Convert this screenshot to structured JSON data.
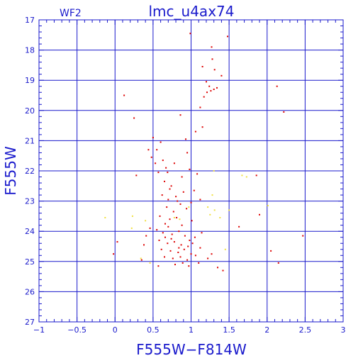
{
  "chart_data": {
    "type": "scatter",
    "title": "lmc_u4ax74",
    "panel_label": "WF2",
    "xlabel": "F555W−F814W",
    "ylabel": "F555W",
    "xlim": [
      -1,
      3
    ],
    "ylim": [
      27,
      17
    ],
    "y_inverted": true,
    "x_ticks": [
      "−1",
      "−0.5",
      "0",
      "0.5",
      "1",
      "1.5",
      "2",
      "2.5",
      "3"
    ],
    "x_tick_values": [
      -1,
      -0.5,
      0,
      0.5,
      1,
      1.5,
      2,
      2.5,
      3
    ],
    "y_ticks": [
      "17",
      "18",
      "19",
      "20",
      "21",
      "22",
      "23",
      "24",
      "25",
      "26",
      "27"
    ],
    "y_tick_values": [
      17,
      18,
      19,
      20,
      21,
      22,
      23,
      24,
      25,
      26,
      27
    ],
    "grid": true,
    "colors": {
      "axes": "#1a1acc",
      "grid": "#1a1acc",
      "series_main": "#dd0000",
      "series_secondary": "#f0e040"
    },
    "series": [
      {
        "color_key": "series_main",
        "points": [
          [
            0.99,
            17.45
          ],
          [
            1.48,
            17.55
          ],
          [
            1.27,
            17.9
          ],
          [
            1.15,
            18.55
          ],
          [
            1.28,
            18.3
          ],
          [
            1.31,
            18.65
          ],
          [
            1.4,
            18.85
          ],
          [
            1.2,
            19.05
          ],
          [
            1.24,
            19.2
          ],
          [
            1.26,
            19.35
          ],
          [
            1.3,
            19.3
          ],
          [
            1.21,
            19.4
          ],
          [
            1.17,
            19.55
          ],
          [
            1.34,
            19.25
          ],
          [
            2.13,
            19.2
          ],
          [
            0.12,
            19.5
          ],
          [
            1.12,
            19.9
          ],
          [
            2.22,
            20.05
          ],
          [
            0.25,
            20.25
          ],
          [
            0.86,
            20.15
          ],
          [
            1.15,
            20.55
          ],
          [
            1.06,
            20.7
          ],
          [
            0.93,
            20.95
          ],
          [
            0.5,
            20.9
          ],
          [
            0.55,
            21.3
          ],
          [
            0.48,
            21.55
          ],
          [
            0.6,
            21.05
          ],
          [
            0.53,
            21.75
          ],
          [
            0.44,
            21.3
          ],
          [
            0.57,
            22.05
          ],
          [
            0.63,
            21.65
          ],
          [
            0.78,
            21.75
          ],
          [
            0.95,
            21.4
          ],
          [
            0.28,
            22.15
          ],
          [
            0.65,
            22.35
          ],
          [
            0.74,
            22.5
          ],
          [
            0.88,
            22.2
          ],
          [
            0.98,
            21.95
          ],
          [
            1.08,
            22.1
          ],
          [
            0.62,
            22.8
          ],
          [
            0.7,
            22.95
          ],
          [
            0.82,
            23.0
          ],
          [
            0.68,
            23.2
          ],
          [
            0.77,
            23.35
          ],
          [
            0.86,
            23.1
          ],
          [
            0.94,
            23.25
          ],
          [
            0.59,
            23.5
          ],
          [
            0.72,
            23.6
          ],
          [
            0.81,
            23.55
          ],
          [
            0.66,
            23.75
          ],
          [
            0.88,
            23.8
          ],
          [
            1.01,
            23.65
          ],
          [
            0.55,
            23.95
          ],
          [
            0.63,
            24.05
          ],
          [
            0.75,
            24.1
          ],
          [
            0.84,
            24.0
          ],
          [
            0.92,
            24.15
          ],
          [
            1.05,
            24.2
          ],
          [
            1.14,
            24.05
          ],
          [
            0.58,
            24.3
          ],
          [
            0.69,
            24.4
          ],
          [
            0.78,
            24.35
          ],
          [
            0.87,
            24.45
          ],
          [
            0.96,
            24.5
          ],
          [
            1.02,
            24.4
          ],
          [
            0.61,
            24.6
          ],
          [
            0.73,
            24.65
          ],
          [
            0.83,
            24.7
          ],
          [
            0.91,
            24.6
          ],
          [
            1.0,
            24.75
          ],
          [
            0.65,
            24.85
          ],
          [
            0.76,
            24.9
          ],
          [
            0.86,
            24.85
          ],
          [
            0.95,
            24.95
          ],
          [
            1.06,
            24.8
          ],
          [
            0.79,
            25.1
          ],
          [
            0.89,
            25.05
          ],
          [
            0.97,
            25.15
          ],
          [
            1.1,
            25.05
          ],
          [
            1.22,
            24.9
          ],
          [
            1.35,
            25.2
          ],
          [
            1.42,
            25.3
          ],
          [
            0.57,
            25.15
          ],
          [
            1.12,
            24.55
          ],
          [
            1.27,
            24.75
          ],
          [
            0.35,
            24.95
          ],
          [
            0.38,
            24.45
          ],
          [
            0.41,
            24.15
          ],
          [
            0.46,
            23.9
          ],
          [
            -0.02,
            24.75
          ],
          [
            0.03,
            24.35
          ],
          [
            2.05,
            24.65
          ],
          [
            2.15,
            25.05
          ],
          [
            2.47,
            24.15
          ],
          [
            1.63,
            23.85
          ],
          [
            1.9,
            23.45
          ],
          [
            1.86,
            22.15
          ],
          [
            1.04,
            22.65
          ],
          [
            0.69,
            22.05
          ],
          [
            0.67,
            21.9
          ],
          [
            0.72,
            22.6
          ],
          [
            0.8,
            22.85
          ],
          [
            0.9,
            22.7
          ],
          [
            1.0,
            23.05
          ],
          [
            1.12,
            22.95
          ],
          [
            0.74,
            24.25
          ],
          [
            0.84,
            24.55
          ],
          [
            0.66,
            24.2
          ],
          [
            0.98,
            24.3
          ],
          [
            0.7,
            23.85
          ]
        ]
      },
      {
        "color_key": "series_secondary",
        "points": [
          [
            -0.13,
            23.55
          ],
          [
            0.23,
            23.5
          ],
          [
            0.22,
            23.9
          ],
          [
            0.4,
            23.65
          ],
          [
            1.22,
            23.2
          ],
          [
            1.25,
            23.45
          ],
          [
            1.28,
            22.8
          ],
          [
            1.31,
            23.3
          ],
          [
            1.38,
            23.55
          ],
          [
            1.5,
            23.3
          ],
          [
            1.73,
            22.2
          ],
          [
            1.67,
            22.15
          ],
          [
            1.3,
            22.0
          ],
          [
            0.97,
            23.2
          ],
          [
            0.78,
            23.55
          ],
          [
            0.34,
            24.9
          ],
          [
            0.85,
            23.6
          ],
          [
            1.45,
            24.6
          ],
          [
            2.01,
            23.15
          ],
          [
            0.46,
            25.05
          ]
        ]
      }
    ]
  }
}
